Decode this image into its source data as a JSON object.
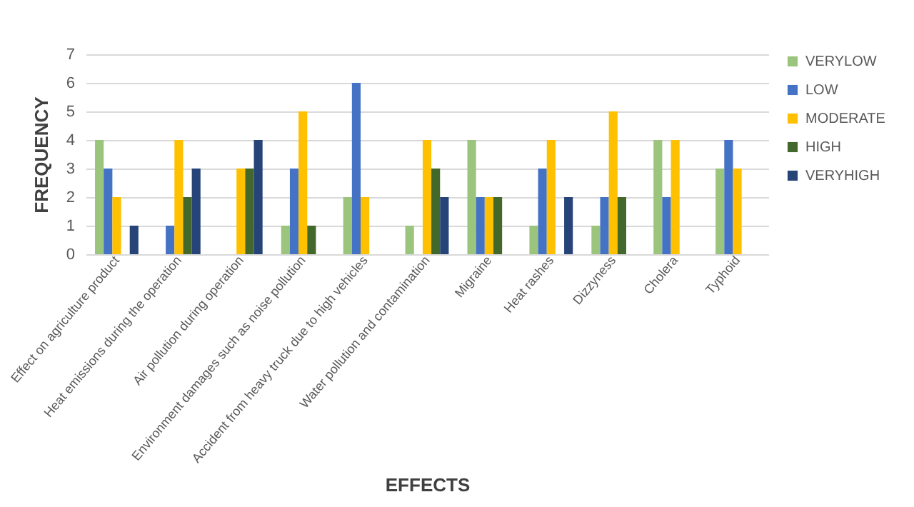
{
  "chart_data": {
    "type": "bar",
    "xlabel": "EFFECTS",
    "ylabel": "FREQUENCY",
    "categories": [
      "Effect on agriculture product",
      "Heat emissions during the operation",
      "Air pollution during operation",
      "Environment damages such as noise pollution",
      "Accident from heavy truck due to high vehicles",
      "Water pollution and contamination",
      "Migraine",
      "Heat rashes",
      "Dizzyness",
      "Cholera",
      "Typhoid"
    ],
    "series": [
      {
        "name": "VERYLOW",
        "color": "#9bc47c",
        "values": [
          4,
          0,
          0,
          1,
          2,
          1,
          4,
          1,
          1,
          4,
          3
        ]
      },
      {
        "name": "LOW",
        "color": "#4472c4",
        "values": [
          3,
          1,
          0,
          3,
          6,
          0,
          2,
          3,
          2,
          2,
          4
        ]
      },
      {
        "name": "MODERATE",
        "color": "#ffc000",
        "values": [
          2,
          4,
          3,
          5,
          2,
          4,
          2,
          4,
          5,
          4,
          3
        ]
      },
      {
        "name": "HIGH",
        "color": "#43682b",
        "values": [
          0,
          2,
          3,
          1,
          0,
          3,
          2,
          0,
          2,
          0,
          0
        ]
      },
      {
        "name": "VERYHIGH",
        "color": "#264478",
        "values": [
          1,
          3,
          4,
          0,
          0,
          2,
          0,
          2,
          0,
          0,
          0
        ]
      }
    ],
    "ylim": [
      0,
      7
    ],
    "yticks": [
      0,
      1,
      2,
      3,
      4,
      5,
      6,
      7
    ],
    "grid": "y",
    "legend": "right"
  }
}
